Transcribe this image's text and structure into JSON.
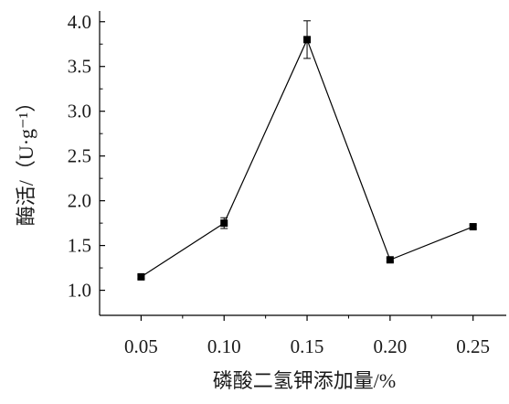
{
  "chart_data": {
    "type": "line",
    "title": "",
    "xlabel": "磷酸二氢钾添加量/%",
    "ylabel": "酶活/（U·g⁻¹）",
    "x": [
      0.05,
      0.1,
      0.15,
      0.2,
      0.25
    ],
    "x_tick_labels": [
      "0.05",
      "0.10",
      "0.15",
      "0.20",
      "0.25"
    ],
    "y_tick_labels": [
      "1.0",
      "1.5",
      "2.0",
      "2.5",
      "3.0",
      "3.5",
      "4.0"
    ],
    "y_ticks": [
      1.0,
      1.5,
      2.0,
      2.5,
      3.0,
      3.5,
      4.0
    ],
    "xlim": [
      0.025,
      0.27
    ],
    "ylim": [
      0.72,
      4.12
    ],
    "series": [
      {
        "values": [
          1.15,
          1.75,
          3.8,
          1.34,
          1.71
        ],
        "errors": [
          0.02,
          0.06,
          0.21,
          0.02,
          0.02
        ],
        "marker": "square",
        "color": "#000000"
      }
    ],
    "grid": false,
    "legend": "none"
  }
}
